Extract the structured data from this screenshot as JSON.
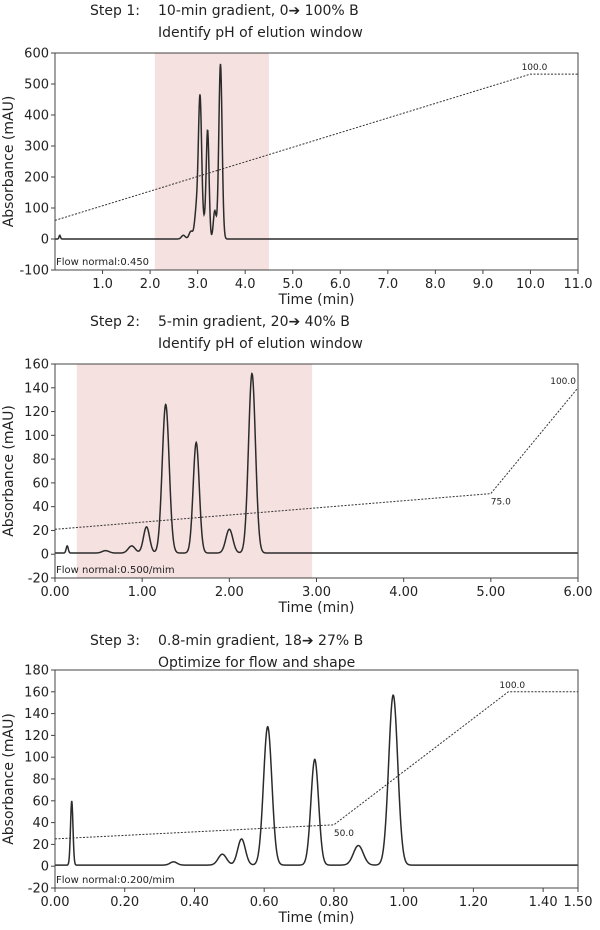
{
  "chart_data": [
    {
      "type": "line",
      "step_label": "Step 1:",
      "title": "10-min gradient, 0➔ 100% B",
      "subtitle": "Identify pH of elution window",
      "xlabel": "Time (min)",
      "ylabel": "Absorbance (mAU)",
      "xlim": [
        0,
        11
      ],
      "ylim": [
        -100,
        600
      ],
      "xticks": [
        1,
        2,
        3,
        4,
        5,
        6,
        7,
        8,
        9,
        10,
        11
      ],
      "xtick_labels": [
        "1.0",
        "2.0",
        "3.0",
        "4.0",
        "5.0",
        "6.0",
        "7.0",
        "8.0",
        "9.0",
        "10.0",
        "11.0"
      ],
      "yticks": [
        -100,
        0,
        100,
        200,
        300,
        400,
        500,
        600
      ],
      "ytick_labels": [
        "-100",
        "0",
        "100",
        "200",
        "300",
        "400",
        "500",
        "600"
      ],
      "highlight_window": [
        2.1,
        4.5
      ],
      "highlight_color": "#f6e1e1",
      "trace_color": "#2b2b2b",
      "baseline": 0,
      "peaks": [
        {
          "t": 0.1,
          "h": 12,
          "w": 0.015
        },
        {
          "t": 2.7,
          "h": 12,
          "w": 0.04
        },
        {
          "t": 2.86,
          "h": 25,
          "w": 0.04
        },
        {
          "t": 2.97,
          "h": 85,
          "w": 0.035
        },
        {
          "t": 3.05,
          "h": 460,
          "w": 0.035
        },
        {
          "t": 3.14,
          "h": 40,
          "w": 0.03
        },
        {
          "t": 3.21,
          "h": 350,
          "w": 0.03
        },
        {
          "t": 3.36,
          "h": 90,
          "w": 0.03
        },
        {
          "t": 3.48,
          "h": 565,
          "w": 0.035
        }
      ],
      "gradient_line": [
        [
          0,
          60
        ],
        [
          10.0,
          532
        ],
        [
          11.0,
          532
        ]
      ],
      "gradient_annotations": [
        {
          "x": 10.0,
          "y": 532,
          "text": "100.0",
          "pos": "above"
        }
      ],
      "flow_label": "Flow normal:0.450"
    },
    {
      "type": "line",
      "step_label": "Step 2:",
      "title": "5-min gradient, 20➔ 40% B",
      "subtitle": "Identify pH of elution window",
      "xlabel": "Time (min)",
      "ylabel": "Absorbance (mAU)",
      "xlim": [
        0,
        6
      ],
      "ylim": [
        -20,
        160
      ],
      "xticks": [
        0,
        1,
        2,
        3,
        4,
        5,
        6
      ],
      "xtick_labels": [
        "0.00",
        "1.00",
        "2.00",
        "3.00",
        "4.00",
        "5.00",
        "6.00"
      ],
      "yticks": [
        -20,
        0,
        20,
        40,
        60,
        80,
        100,
        120,
        140,
        160
      ],
      "ytick_labels": [
        "-20",
        "0",
        "20",
        "40",
        "60",
        "80",
        "100",
        "120",
        "140",
        "160"
      ],
      "highlight_window": [
        0.25,
        2.95
      ],
      "highlight_color": "#f6e1e1",
      "trace_color": "#2b2b2b",
      "baseline": 1,
      "peaks": [
        {
          "t": 0.14,
          "h": 6,
          "w": 0.012
        },
        {
          "t": 0.58,
          "h": 2,
          "w": 0.04
        },
        {
          "t": 0.88,
          "h": 6,
          "w": 0.04
        },
        {
          "t": 1.05,
          "h": 22,
          "w": 0.035
        },
        {
          "t": 1.27,
          "h": 125,
          "w": 0.04
        },
        {
          "t": 1.62,
          "h": 93,
          "w": 0.035
        },
        {
          "t": 2.0,
          "h": 20,
          "w": 0.04
        },
        {
          "t": 2.26,
          "h": 151,
          "w": 0.04
        }
      ],
      "gradient_line": [
        [
          0,
          21
        ],
        [
          5.0,
          51
        ],
        [
          6.0,
          140
        ]
      ],
      "gradient_annotations": [
        {
          "x": 5.0,
          "y": 51,
          "text": "75.0",
          "pos": "below"
        },
        {
          "x": 6.0,
          "y": 140,
          "text": "100.0",
          "pos": "above-left"
        }
      ],
      "flow_label": "Flow normal:0.500/mim"
    },
    {
      "type": "line",
      "step_label": "Step 3:",
      "title": "0.8-min gradient, 18➔ 27% B",
      "subtitle": "Optimize for flow and shape",
      "xlabel": "Time (min)",
      "ylabel": "Absorbance (mAU)",
      "xlim": [
        0,
        1.5
      ],
      "ylim": [
        -20,
        180
      ],
      "xticks": [
        0,
        0.2,
        0.4,
        0.6,
        0.8,
        1.0,
        1.2,
        1.4,
        1.5
      ],
      "xtick_labels": [
        "0.00",
        "0.20",
        "0.40",
        "0.60",
        "0.80",
        "1.00",
        "1.20",
        "1.40",
        "1.50"
      ],
      "yticks": [
        -20,
        0,
        20,
        40,
        60,
        80,
        100,
        120,
        140,
        160,
        180
      ],
      "ytick_labels": [
        "-20",
        "0",
        "20",
        "40",
        "60",
        "80",
        "100",
        "120",
        "140",
        "160",
        "180"
      ],
      "highlight_window": null,
      "highlight_color": "#f6e1e1",
      "trace_color": "#2b2b2b",
      "baseline": 1,
      "peaks": [
        {
          "t": 0.048,
          "h": 59,
          "w": 0.0035
        },
        {
          "t": 0.34,
          "h": 3,
          "w": 0.01
        },
        {
          "t": 0.48,
          "h": 10,
          "w": 0.012
        },
        {
          "t": 0.535,
          "h": 24,
          "w": 0.011
        },
        {
          "t": 0.61,
          "h": 127,
          "w": 0.012
        },
        {
          "t": 0.745,
          "h": 97,
          "w": 0.011
        },
        {
          "t": 0.87,
          "h": 18,
          "w": 0.014
        },
        {
          "t": 0.97,
          "h": 156,
          "w": 0.013
        }
      ],
      "gradient_line": [
        [
          0,
          25
        ],
        [
          0.8,
          38
        ],
        [
          1.3,
          160
        ],
        [
          1.5,
          160
        ]
      ],
      "gradient_annotations": [
        {
          "x": 0.8,
          "y": 38,
          "text": "50.0",
          "pos": "below"
        },
        {
          "x": 1.3,
          "y": 160,
          "text": "100.0",
          "pos": "above"
        }
      ],
      "flow_label": "Flow normal:0.200/mim"
    }
  ]
}
